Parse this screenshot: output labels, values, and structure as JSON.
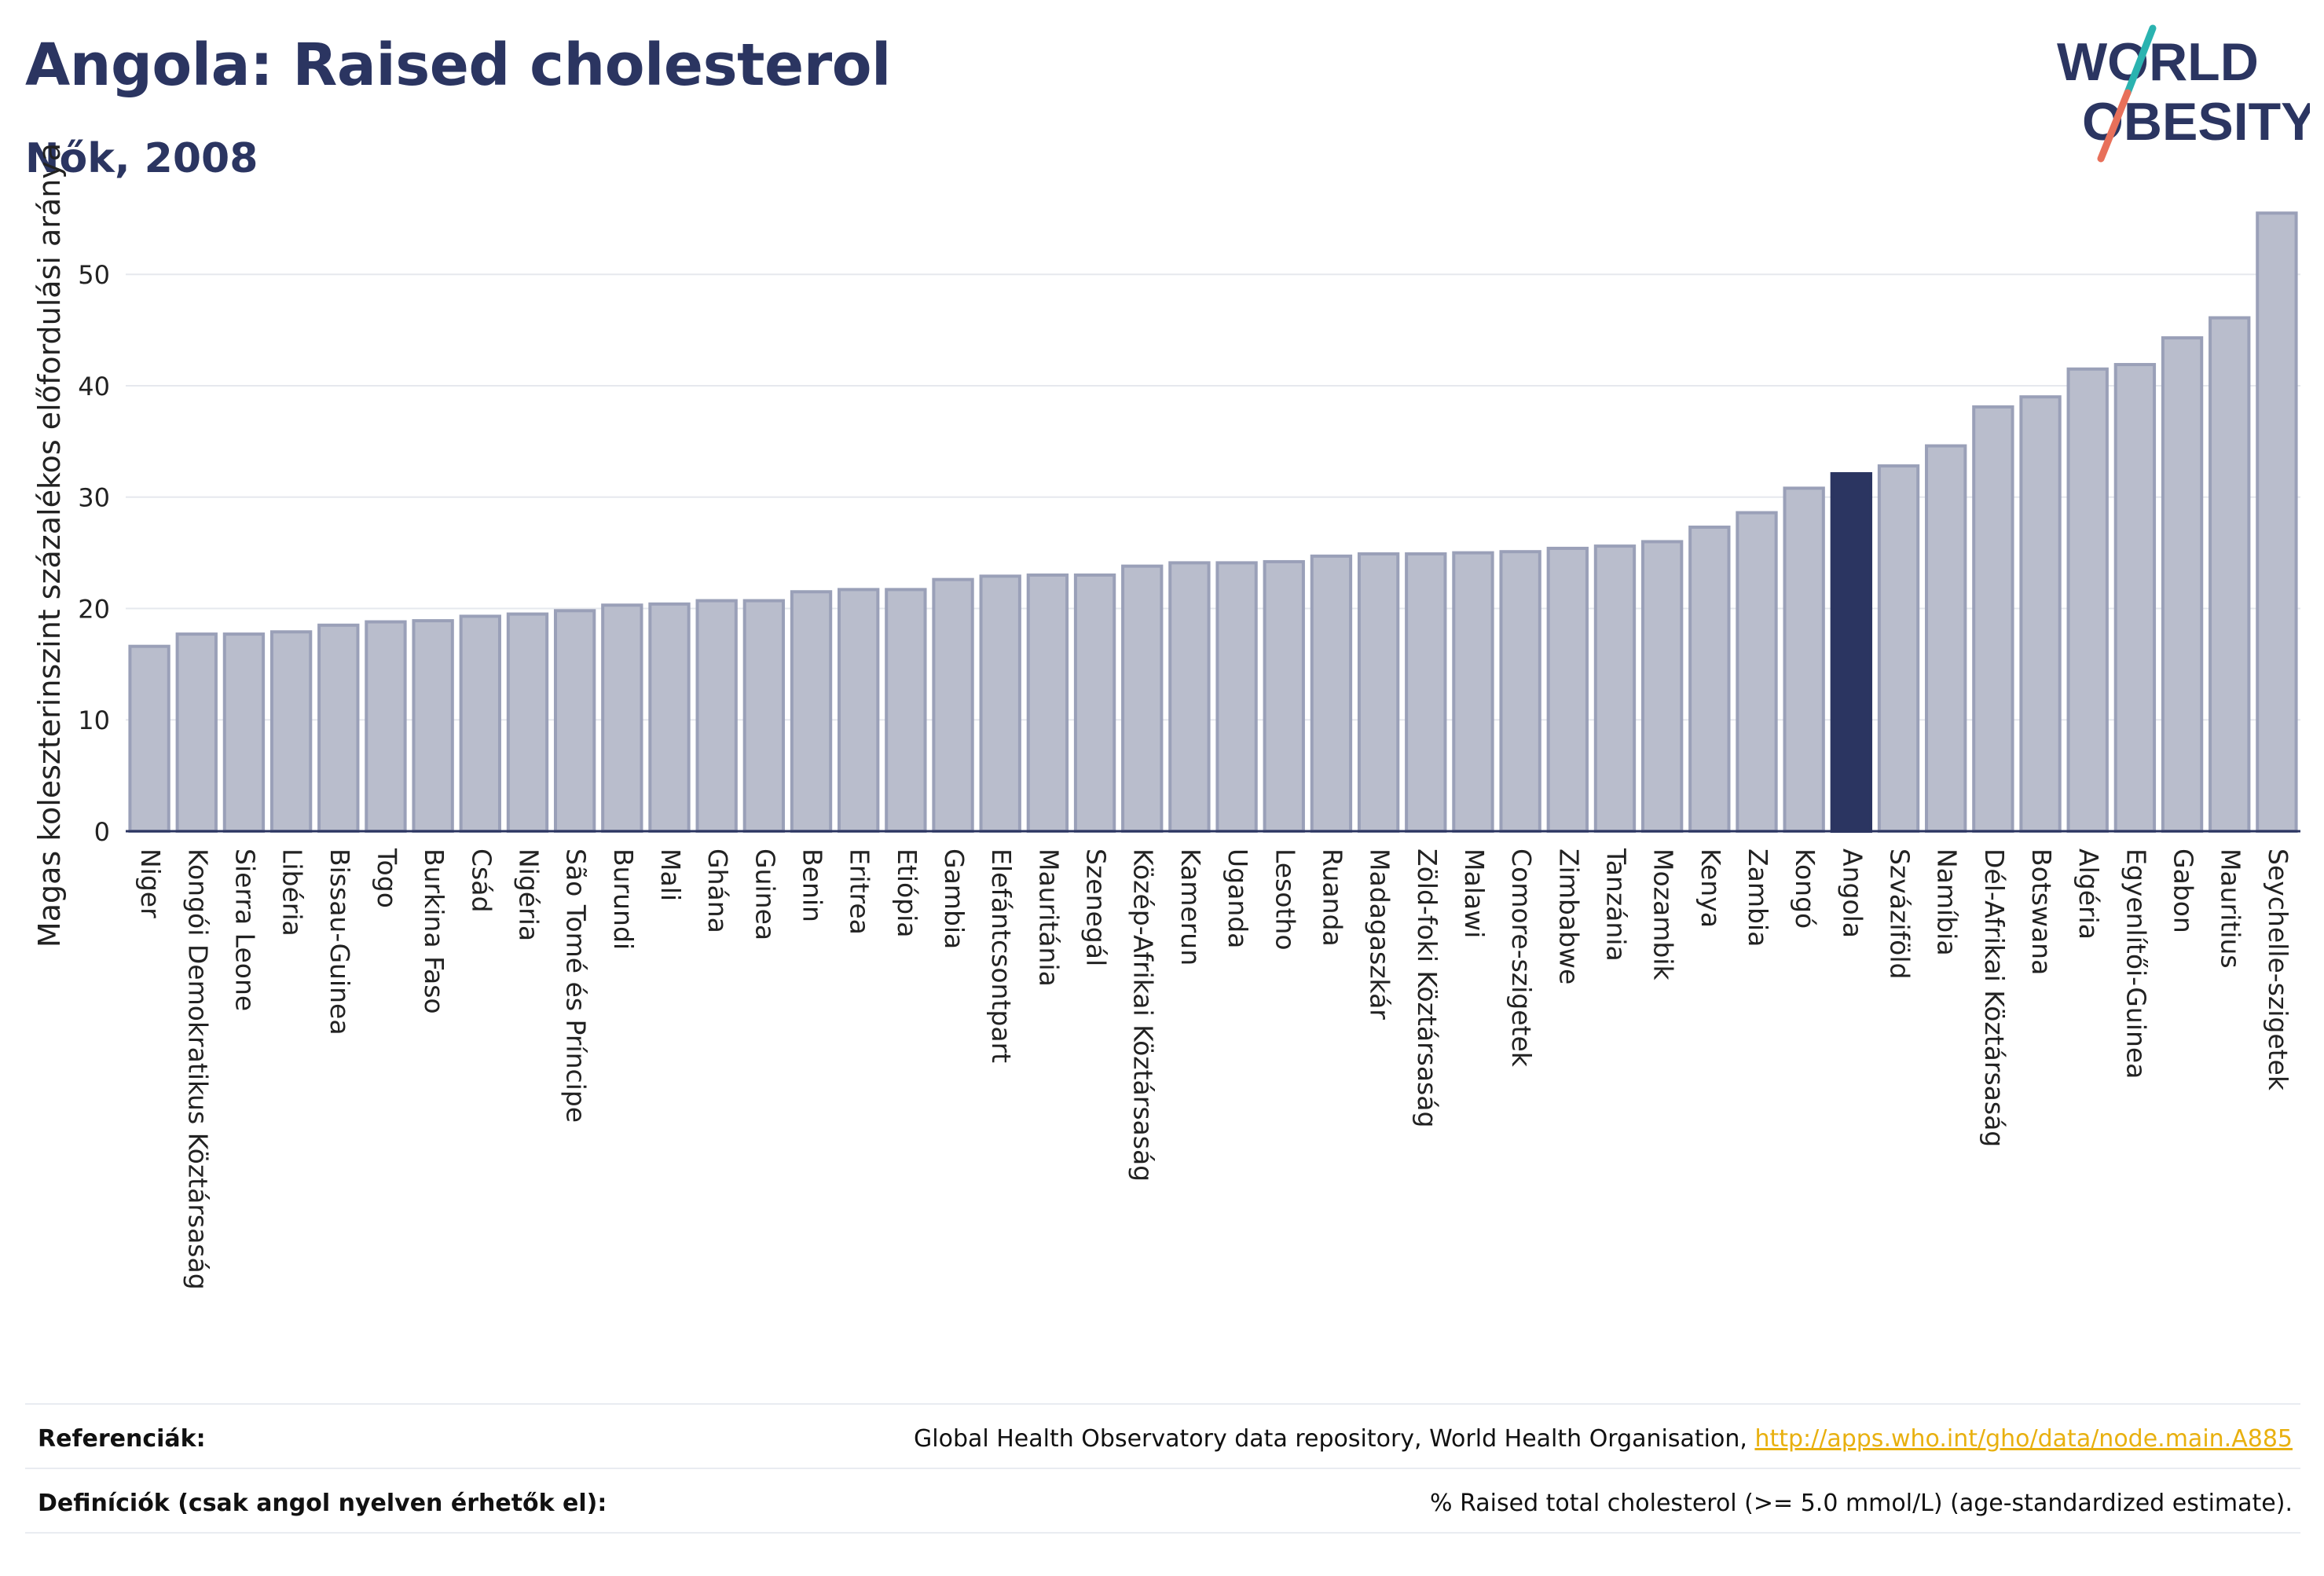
{
  "header": {
    "title": "Angola: Raised cholesterol",
    "subtitle": "Nők, 2008"
  },
  "logo": {
    "line1": "WORLD",
    "line2": "OBESITY"
  },
  "colors": {
    "bar": "#b9bdcc",
    "bar_border": "#9aa0b8",
    "highlight": "#2b3561",
    "axis": "#2b3561",
    "grid": "#e6e8ee",
    "link": "#e8b00f"
  },
  "chart_data": {
    "type": "bar",
    "ylabel": "Magas koleszterinszint százalékos előfordulási aránya",
    "ylim": [
      0,
      57
    ],
    "yticks": [
      0,
      10,
      20,
      30,
      40,
      50
    ],
    "grid": true,
    "highlight": "Angola",
    "categories": [
      "Niger",
      "Kongói Demokratikus Köztársaság",
      "Sierra Leone",
      "Libéria",
      "Bissau-Guinea",
      "Togo",
      "Burkina Faso",
      "Csád",
      "Nigéria",
      "São Tomé és Príncipe",
      "Burundi",
      "Mali",
      "Ghána",
      "Guinea",
      "Benin",
      "Eritrea",
      "Etiópia",
      "Gambia",
      "Elefántcsontpart",
      "Mauritánia",
      "Szenegál",
      "Közép-Afrikai Köztársaság",
      "Kamerun",
      "Uganda",
      "Lesotho",
      "Ruanda",
      "Madagaszkár",
      "Zöld-foki Köztársaság",
      "Malawi",
      "Comore-szigetek",
      "Zimbabwe",
      "Tanzánia",
      "Mozambik",
      "Kenya",
      "Zambia",
      "Kongó",
      "Angola",
      "Szváziföld",
      "Namíbia",
      "Dél-Afrikai Köztársaság",
      "Botswana",
      "Algéria",
      "Egyenlítői-Guinea",
      "Gabon",
      "Mauritius",
      "Seychelle-szigetek"
    ],
    "values": [
      16.6,
      17.7,
      17.7,
      17.9,
      18.5,
      18.8,
      18.9,
      19.3,
      19.5,
      19.8,
      20.3,
      20.4,
      20.7,
      20.7,
      21.5,
      21.7,
      21.7,
      22.6,
      22.9,
      23.0,
      23.0,
      23.8,
      24.1,
      24.1,
      24.2,
      24.7,
      24.9,
      24.9,
      25.0,
      25.1,
      25.4,
      25.6,
      26.0,
      27.3,
      28.6,
      30.8,
      32.1,
      32.8,
      34.6,
      38.1,
      39.0,
      41.5,
      41.9,
      44.3,
      46.1,
      55.5
    ]
  },
  "footer": {
    "references_label": "Referenciák:",
    "references_text": "Global Health Observatory data repository, World Health Organisation, ",
    "references_link": "http://apps.who.int/gho/data/node.main.A885",
    "definitions_label": "Definíciók (csak angol nyelven érhetők el):",
    "definitions_text": "% Raised total cholesterol (>= 5.0 mmol/L) (age-standardized estimate)."
  }
}
